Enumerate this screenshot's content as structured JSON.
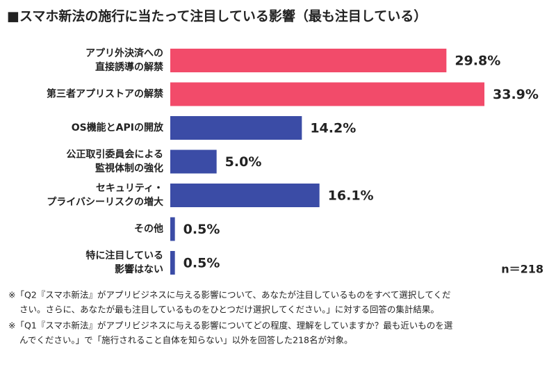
{
  "chart_data": {
    "type": "bar",
    "orientation": "horizontal",
    "title": "■スマホ新法の施行に当たって注目している影響（最も注目している）",
    "categories": [
      [
        "アプリ外決済への",
        "直接誘導の解禁"
      ],
      [
        "第三者アプリストアの解禁"
      ],
      [
        "OS機能とAPIの開放"
      ],
      [
        "公正取引委員会による",
        "監視体制の強化"
      ],
      [
        "セキュリティ・",
        "プライバシーリスクの増大"
      ],
      [
        "その他"
      ],
      [
        "特に注目している",
        "影響はない"
      ]
    ],
    "values": [
      29.8,
      33.9,
      14.2,
      5.0,
      16.1,
      0.5,
      0.5
    ],
    "value_labels": [
      "29.8%",
      "33.9%",
      "14.2%",
      "5.0%",
      "16.1%",
      "0.5%",
      "0.5%"
    ],
    "colors": [
      "#f24b6a",
      "#f24b6a",
      "#3b4ca6",
      "#3b4ca6",
      "#3b4ca6",
      "#3b4ca6",
      "#3b4ca6"
    ],
    "note": "n＝218",
    "footnotes": [
      [
        "※「Q2『スマホ新法』がアプリビジネスに与える影響について、あなたが注目しているものをすべて選択してくだ",
        "さい。さらに、あなたが最も注目しているものをひとつだけ選択してください。」に対する回答の集計結果。"
      ],
      [
        "※「Q1『スマホ新法』がアプリビジネスに与える影響についてどの程度、理解をしていますか？最も近いものを選",
        "んでください。」で「施行されること自体を知らない」以外を回答した218名が対象。"
      ]
    ]
  }
}
